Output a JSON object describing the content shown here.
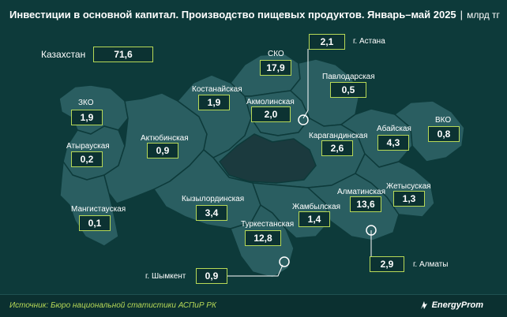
{
  "title": "Инвестиции в основной капитал. Производство пищевых продуктов. Январь–май 2025",
  "unit": "млрд тг",
  "total": {
    "label": "Казахстан",
    "value": "71,6"
  },
  "regions": [
    {
      "id": "zko",
      "name": "ЗКО",
      "value": "1,9"
    },
    {
      "id": "atyrau",
      "name": "Атырауская",
      "value": "0,2"
    },
    {
      "id": "mangystau",
      "name": "Мангистауская",
      "value": "0,1"
    },
    {
      "id": "aktobe",
      "name": "Актюбинская",
      "value": "0,9"
    },
    {
      "id": "kostanay",
      "name": "Костанайская",
      "value": "1,9"
    },
    {
      "id": "sko",
      "name": "СКО",
      "value": "17,9"
    },
    {
      "id": "akmola",
      "name": "Акмолинская",
      "value": "2,0"
    },
    {
      "id": "astana",
      "name": "г. Астана",
      "value": "2,1"
    },
    {
      "id": "pavlodar",
      "name": "Павлодарская",
      "value": "0,5"
    },
    {
      "id": "karaganda",
      "name": "Карагандинская",
      "value": "2,6"
    },
    {
      "id": "abai",
      "name": "Абайская",
      "value": "4,3"
    },
    {
      "id": "vko",
      "name": "ВКО",
      "value": "0,8"
    },
    {
      "id": "kyzylorda",
      "name": "Кызылординская",
      "value": "3,4"
    },
    {
      "id": "zhambyl",
      "name": "Жамбылская",
      "value": "1,4"
    },
    {
      "id": "almaty_obl",
      "name": "Алматинская",
      "value": "13,6"
    },
    {
      "id": "zhetysu",
      "name": "Жетысуская",
      "value": "1,3"
    },
    {
      "id": "turkestan",
      "name": "Туркестанская",
      "value": "12,8"
    },
    {
      "id": "shymkent",
      "name": "г. Шымкент",
      "value": "0,9"
    },
    {
      "id": "almaty_city",
      "name": "г. Алматы",
      "value": "2,9"
    }
  ],
  "source": "Источник: Бюро национальной статистики АСПиР РК",
  "brand": "EnergyProm",
  "colors": {
    "background": "#0d3a3a",
    "region_fill": "#2a5e61",
    "region_center": "#1b3a3e",
    "border": "#0d3a3a",
    "accent": "#b7d957"
  }
}
